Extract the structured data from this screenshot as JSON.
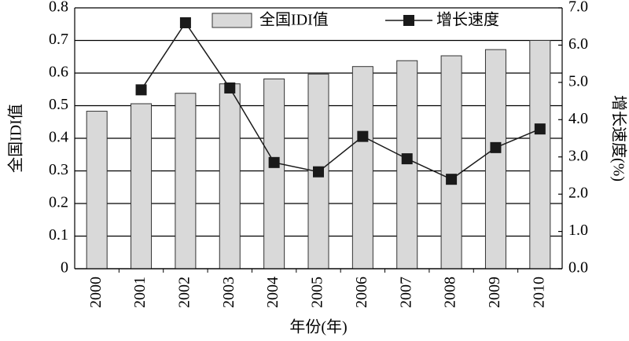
{
  "chart_data": {
    "type": "bar",
    "categories": [
      "2000",
      "2001",
      "2002",
      "2003",
      "2004",
      "2005",
      "2006",
      "2007",
      "2008",
      "2009",
      "2010"
    ],
    "series": [
      {
        "name": "全国IDI值",
        "type": "bar",
        "color": "#d9d9d9",
        "values": [
          0.483,
          0.506,
          0.538,
          0.567,
          0.582,
          0.597,
          0.62,
          0.638,
          0.653,
          0.672,
          0.7
        ]
      },
      {
        "name": "增长速度",
        "type": "line",
        "axis": "y2",
        "color": "#1a1a1a",
        "values": [
          null,
          4.8,
          6.6,
          4.85,
          2.85,
          2.6,
          3.55,
          2.95,
          2.4,
          3.25,
          3.75
        ]
      }
    ],
    "ylim": [
      0,
      0.8
    ],
    "yticks": [
      0,
      0.1,
      0.2,
      0.3,
      0.4,
      0.5,
      0.6,
      0.7,
      0.8
    ],
    "y2lim": [
      0,
      7
    ],
    "y2ticks": [
      {
        "value": 0,
        "label": "0.0"
      },
      {
        "value": 1,
        "label": "1.0"
      },
      {
        "value": 2,
        "label": "2.0"
      },
      {
        "value": 3,
        "label": "3.0"
      },
      {
        "value": 4,
        "label": "4.0"
      },
      {
        "value": 5,
        "label": "5.0"
      },
      {
        "value": 6,
        "label": "6.0"
      },
      {
        "value": 7,
        "label": "7.0"
      }
    ],
    "y_label": "全国IDI值",
    "y2_label": "增长速度(%)",
    "x_label": "年份(年)",
    "grid": true,
    "legend": "top"
  }
}
